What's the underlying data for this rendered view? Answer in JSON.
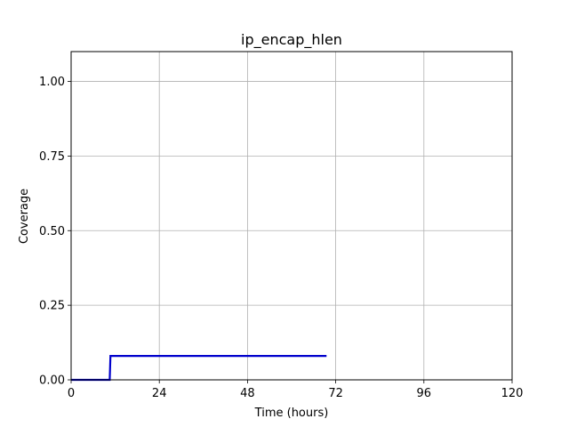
{
  "chart_data": {
    "type": "line",
    "title": "ip_encap_hlen",
    "xlabel": "Time (hours)",
    "ylabel": "Coverage",
    "xlim": [
      0,
      120
    ],
    "ylim": [
      0,
      1.1
    ],
    "xticks": [
      0,
      24,
      48,
      72,
      96,
      120
    ],
    "xtick_labels": [
      "0",
      "24",
      "48",
      "72",
      "96",
      "120"
    ],
    "yticks": [
      0.0,
      0.25,
      0.5,
      0.75,
      1.0
    ],
    "ytick_labels": [
      "0.00",
      "0.25",
      "0.50",
      "0.75",
      "1.00"
    ],
    "grid": true,
    "series": [
      {
        "color": "#0000cc",
        "x": [
          0,
          10.5,
          10.7,
          69.5
        ],
        "y": [
          0,
          0,
          0.08,
          0.08
        ]
      }
    ]
  }
}
